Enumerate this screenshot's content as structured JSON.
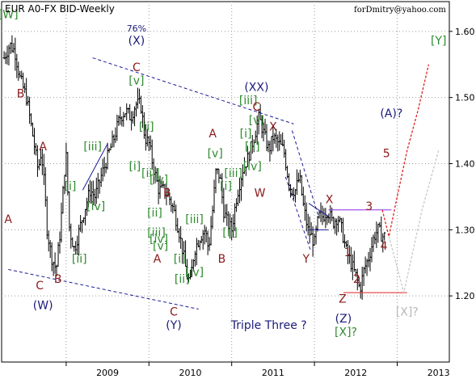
{
  "header": {
    "title": "EUR A0-FX BID-Weekly",
    "author": "forDmitry@yahoo.com"
  },
  "chart_data": {
    "type": "bar",
    "chart_style": "OHLC weekly bars",
    "title": "EUR A0-FX BID-Weekly",
    "xlabel": "",
    "ylabel": "",
    "x_axis": {
      "ticks": [
        "2009",
        "2010",
        "2011",
        "2012",
        "2013"
      ],
      "range": [
        2008.22,
        2013.63
      ]
    },
    "y_axis": {
      "ticks": [
        "1.20",
        "1.30",
        "1.40",
        "1.50",
        "1.60"
      ],
      "range": [
        1.1,
        1.645
      ],
      "position": "right"
    },
    "grid": true,
    "price_path": [
      [
        2008.25,
        1.56
      ],
      [
        2008.32,
        1.58
      ],
      [
        2008.38,
        1.57
      ],
      [
        2008.44,
        1.53
      ],
      [
        2008.52,
        1.5
      ],
      [
        2008.6,
        1.44
      ],
      [
        2008.66,
        1.39
      ],
      [
        2008.7,
        1.42
      ],
      [
        2008.74,
        1.36
      ],
      [
        2008.77,
        1.3
      ],
      [
        2008.82,
        1.26
      ],
      [
        2008.88,
        1.24
      ],
      [
        2008.93,
        1.3
      ],
      [
        2008.98,
        1.39
      ],
      [
        2009.0,
        1.41
      ],
      [
        2009.04,
        1.3
      ],
      [
        2009.1,
        1.27
      ],
      [
        2009.16,
        1.3
      ],
      [
        2009.22,
        1.33
      ],
      [
        2009.29,
        1.36
      ],
      [
        2009.35,
        1.35
      ],
      [
        2009.42,
        1.38
      ],
      [
        2009.5,
        1.41
      ],
      [
        2009.58,
        1.44
      ],
      [
        2009.65,
        1.47
      ],
      [
        2009.72,
        1.48
      ],
      [
        2009.78,
        1.47
      ],
      [
        2009.84,
        1.49
      ],
      [
        2009.9,
        1.49
      ],
      [
        2009.95,
        1.44
      ],
      [
        2010.0,
        1.43
      ],
      [
        2010.06,
        1.39
      ],
      [
        2010.12,
        1.36
      ],
      [
        2010.18,
        1.36
      ],
      [
        2010.24,
        1.35
      ],
      [
        2010.3,
        1.33
      ],
      [
        2010.36,
        1.3
      ],
      [
        2010.42,
        1.26
      ],
      [
        2010.46,
        1.23
      ],
      [
        2010.5,
        1.22
      ],
      [
        2010.55,
        1.27
      ],
      [
        2010.62,
        1.29
      ],
      [
        2010.68,
        1.3
      ],
      [
        2010.72,
        1.27
      ],
      [
        2010.77,
        1.33
      ],
      [
        2010.81,
        1.39
      ],
      [
        2010.86,
        1.38
      ],
      [
        2010.9,
        1.33
      ],
      [
        2010.95,
        1.31
      ],
      [
        2011.0,
        1.3
      ],
      [
        2011.06,
        1.35
      ],
      [
        2011.13,
        1.39
      ],
      [
        2011.2,
        1.41
      ],
      [
        2011.27,
        1.44
      ],
      [
        2011.33,
        1.47
      ],
      [
        2011.4,
        1.44
      ],
      [
        2011.45,
        1.42
      ],
      [
        2011.5,
        1.44
      ],
      [
        2011.57,
        1.43
      ],
      [
        2011.63,
        1.42
      ],
      [
        2011.68,
        1.38
      ],
      [
        2011.72,
        1.36
      ],
      [
        2011.77,
        1.36
      ],
      [
        2011.82,
        1.38
      ],
      [
        2011.86,
        1.34
      ],
      [
        2011.92,
        1.3
      ],
      [
        2012.0,
        1.28
      ],
      [
        2012.05,
        1.32
      ],
      [
        2012.1,
        1.32
      ],
      [
        2012.16,
        1.33
      ],
      [
        2012.22,
        1.31
      ],
      [
        2012.28,
        1.32
      ],
      [
        2012.33,
        1.3
      ],
      [
        2012.38,
        1.27
      ],
      [
        2012.44,
        1.25
      ],
      [
        2012.5,
        1.23
      ],
      [
        2012.55,
        1.21
      ],
      [
        2012.6,
        1.24
      ],
      [
        2012.66,
        1.26
      ],
      [
        2012.72,
        1.29
      ],
      [
        2012.77,
        1.3
      ],
      [
        2012.82,
        1.29
      ],
      [
        2012.86,
        1.29
      ]
    ],
    "wave_labels": [
      {
        "text": "[W]",
        "x": 2008.3,
        "y": 1.62,
        "color": "#2e8b2e"
      },
      {
        "text": "B",
        "x": 2008.45,
        "y": 1.5,
        "color": "#8b1a1a"
      },
      {
        "text": "A",
        "x": 2008.3,
        "y": 1.31,
        "color": "#8b1a1a"
      },
      {
        "text": "A",
        "x": 2008.72,
        "y": 1.42,
        "color": "#8b1a1a"
      },
      {
        "text": "C",
        "x": 2008.68,
        "y": 1.21,
        "color": "#8b1a1a"
      },
      {
        "text": "B",
        "x": 2008.9,
        "y": 1.22,
        "color": "#8b1a1a"
      },
      {
        "text": "(W)",
        "x": 2008.72,
        "y": 1.18,
        "color": "#1a1a7a"
      },
      {
        "text": "[i]",
        "x": 2009.05,
        "y": 1.36,
        "color": "#2e8b2e"
      },
      {
        "text": "[ii]",
        "x": 2009.16,
        "y": 1.25,
        "color": "#2e8b2e"
      },
      {
        "text": "[iii]",
        "x": 2009.32,
        "y": 1.42,
        "color": "#2e8b2e"
      },
      {
        "text": "[iv]",
        "x": 2009.36,
        "y": 1.33,
        "color": "#2e8b2e"
      },
      {
        "text": "76%",
        "x": 2009.85,
        "y": 1.6,
        "color": "#1a1a7a"
      },
      {
        "text": "(X)",
        "x": 2009.85,
        "y": 1.58,
        "color": "#1a1a7a"
      },
      {
        "text": "C",
        "x": 2009.85,
        "y": 1.54,
        "color": "#8b1a1a"
      },
      {
        "text": "[v]",
        "x": 2009.85,
        "y": 1.52,
        "color": "#2e8b2e"
      },
      {
        "text": "[ii]",
        "x": 2009.97,
        "y": 1.45,
        "color": "#2e8b2e"
      },
      {
        "text": "[i]",
        "x": 2009.83,
        "y": 1.39,
        "color": "#2e8b2e"
      },
      {
        "text": "[iii]",
        "x": 2010.02,
        "y": 1.38,
        "color": "#2e8b2e"
      },
      {
        "text": "[iv]",
        "x": 2010.12,
        "y": 1.37,
        "color": "#2e8b2e"
      },
      {
        "text": "B",
        "x": 2010.22,
        "y": 1.35,
        "color": "#8b1a1a"
      },
      {
        "text": "[ii]",
        "x": 2010.07,
        "y": 1.32,
        "color": "#2e8b2e"
      },
      {
        "text": "[iii]",
        "x": 2010.09,
        "y": 1.29,
        "color": "#2e8b2e"
      },
      {
        "text": "[iv]",
        "x": 2010.12,
        "y": 1.28,
        "color": "#2e8b2e"
      },
      {
        "text": "[v]",
        "x": 2010.14,
        "y": 1.27,
        "color": "#2e8b2e"
      },
      {
        "text": "A",
        "x": 2010.1,
        "y": 1.25,
        "color": "#8b1a1a"
      },
      {
        "text": "[i]",
        "x": 2010.37,
        "y": 1.25,
        "color": "#2e8b2e"
      },
      {
        "text": "[ii]",
        "x": 2010.4,
        "y": 1.22,
        "color": "#2e8b2e"
      },
      {
        "text": "[iii]",
        "x": 2010.55,
        "y": 1.31,
        "color": "#2e8b2e"
      },
      {
        "text": "[iv]",
        "x": 2010.55,
        "y": 1.23,
        "color": "#2e8b2e"
      },
      {
        "text": "[v]",
        "x": 2010.8,
        "y": 1.41,
        "color": "#2e8b2e"
      },
      {
        "text": "A",
        "x": 2010.77,
        "y": 1.44,
        "color": "#8b1a1a"
      },
      {
        "text": "[i]",
        "x": 2010.93,
        "y": 1.36,
        "color": "#2e8b2e"
      },
      {
        "text": "[ii]",
        "x": 2010.98,
        "y": 1.29,
        "color": "#2e8b2e"
      },
      {
        "text": "[iii]",
        "x": 2011.02,
        "y": 1.38,
        "color": "#2e8b2e"
      },
      {
        "text": "B",
        "x": 2010.88,
        "y": 1.25,
        "color": "#8b1a1a"
      },
      {
        "text": "C",
        "x": 2010.3,
        "y": 1.17,
        "color": "#8b1a1a"
      },
      {
        "text": "(Y)",
        "x": 2010.3,
        "y": 1.15,
        "color": "#1a1a7a"
      },
      {
        "text": "(XX)",
        "x": 2011.3,
        "y": 1.51,
        "color": "#1a1a7a"
      },
      {
        "text": "[iii]",
        "x": 2011.2,
        "y": 1.49,
        "color": "#2e8b2e"
      },
      {
        "text": "C",
        "x": 2011.3,
        "y": 1.48,
        "color": "#8b1a1a"
      },
      {
        "text": "[v]",
        "x": 2011.3,
        "y": 1.46,
        "color": "#2e8b2e"
      },
      {
        "text": "X",
        "x": 2011.5,
        "y": 1.45,
        "color": "#8b1a1a"
      },
      {
        "text": "[i]",
        "x": 2011.17,
        "y": 1.44,
        "color": "#2e8b2e"
      },
      {
        "text": "[ii]",
        "x": 2011.25,
        "y": 1.42,
        "color": "#2e8b2e"
      },
      {
        "text": "[iv]",
        "x": 2011.25,
        "y": 1.39,
        "color": "#2e8b2e"
      },
      {
        "text": "W",
        "x": 2011.34,
        "y": 1.35,
        "color": "#8b1a1a"
      },
      {
        "text": "Y",
        "x": 2011.9,
        "y": 1.25,
        "color": "#8b1a1a"
      },
      {
        "text": "X",
        "x": 2012.18,
        "y": 1.34,
        "color": "#8b1a1a"
      },
      {
        "text": "3",
        "x": 2012.66,
        "y": 1.33,
        "color": "#8b1a1a"
      },
      {
        "text": "1",
        "x": 2012.4,
        "y": 1.26,
        "color": "#8b1a1a"
      },
      {
        "text": "2",
        "x": 2012.51,
        "y": 1.22,
        "color": "#8b1a1a"
      },
      {
        "text": "4",
        "x": 2012.84,
        "y": 1.27,
        "color": "#8b1a1a"
      },
      {
        "text": "5",
        "x": 2012.87,
        "y": 1.41,
        "color": "#8b1a1a"
      },
      {
        "text": "(A)?",
        "x": 2012.93,
        "y": 1.47,
        "color": "#1a1a7a"
      },
      {
        "text": "Z",
        "x": 2012.34,
        "y": 1.19,
        "color": "#8b1a1a"
      },
      {
        "text": "(Z)",
        "x": 2012.35,
        "y": 1.16,
        "color": "#1a1a7a"
      },
      {
        "text": "[X]?",
        "x": 2012.38,
        "y": 1.14,
        "color": "#2e8b2e"
      },
      {
        "text": "Triple Three ?",
        "x": 2011.45,
        "y": 1.15,
        "color": "#1a1a7a"
      },
      {
        "text": "[X]?",
        "x": 2013.12,
        "y": 1.17,
        "color": "#b8b8b8"
      },
      {
        "text": "[Y]",
        "x": 2013.5,
        "y": 1.58,
        "color": "#2e8b2e"
      }
    ],
    "trend_lines": [
      {
        "points": [
          [
            2008.3,
            1.24
          ],
          [
            2010.6,
            1.18
          ]
        ],
        "color": "#1a1a9a",
        "dash": "4,3"
      },
      {
        "points": [
          [
            2009.32,
            1.56
          ],
          [
            2011.75,
            1.46
          ]
        ],
        "color": "#1a1a9a",
        "dash": "4,3"
      },
      {
        "points": [
          [
            2011.73,
            1.45
          ],
          [
            2012.05,
            1.32
          ]
        ],
        "color": "#1a1a9a",
        "dash": "4,3"
      },
      {
        "points": [
          [
            2011.65,
            1.38
          ],
          [
            2011.95,
            1.27
          ]
        ],
        "color": "#1a1a9a",
        "dash": "4,3"
      },
      {
        "points": [
          [
            2009.2,
            1.36
          ],
          [
            2009.5,
            1.43
          ]
        ],
        "color": "#1a1a9a",
        "dash": ""
      },
      {
        "points": [
          [
            2011.93,
            1.34
          ],
          [
            2012.17,
            1.32
          ]
        ],
        "color": "#1a1a9a",
        "dash": ""
      },
      {
        "points": [
          [
            2011.93,
            1.3
          ],
          [
            2012.17,
            1.3
          ]
        ],
        "color": "#1a1a9a",
        "dash": ""
      },
      {
        "points": [
          [
            2012.17,
            1.33
          ],
          [
            2012.93,
            1.33
          ]
        ],
        "color": "#8a2be2",
        "dash": ""
      },
      {
        "points": [
          [
            2012.35,
            1.205
          ],
          [
            2013.12,
            1.205
          ]
        ],
        "color": "#e02020",
        "dash": ""
      }
    ],
    "projections": [
      {
        "points": [
          [
            2012.82,
            1.33
          ],
          [
            2012.9,
            1.29
          ],
          [
            2013.0,
            1.35
          ],
          [
            2013.12,
            1.42
          ],
          [
            2013.25,
            1.48
          ],
          [
            2013.38,
            1.55
          ]
        ],
        "color": "#e02020",
        "dash": "3,2"
      },
      {
        "points": [
          [
            2012.9,
            1.29
          ],
          [
            2013.08,
            1.205
          ],
          [
            2013.3,
            1.33
          ],
          [
            2013.5,
            1.42
          ]
        ],
        "color": "#c8c8c8",
        "dash": "3,2"
      }
    ]
  }
}
